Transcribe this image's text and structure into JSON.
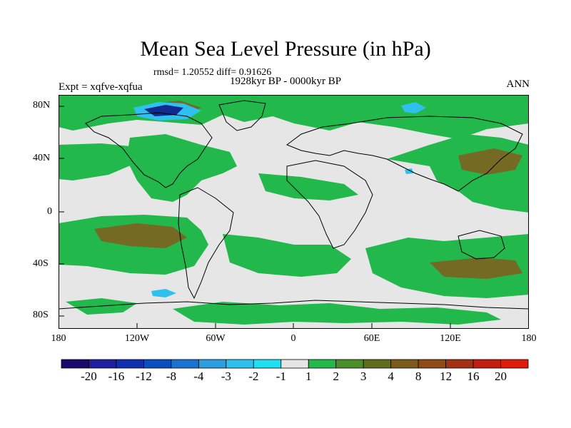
{
  "map": {
    "title": "Mean Sea Level Pressure (in hPa)",
    "stats_line": "rmsd= 1.20552 diff= 0.91626",
    "experiment": "Expt = xqfve-xqfua",
    "period": "1928kyr BP - 0000kyr BP",
    "season": "ANN",
    "projection": "cylindrical equidistant, 180W to 180E, 90S to 90N",
    "lat_labels": [
      "80N",
      "40N",
      "0",
      "40S",
      "80S"
    ],
    "lon_labels": [
      "180",
      "120W",
      "60W",
      "0",
      "60E",
      "120E",
      "180"
    ]
  },
  "colorbar": {
    "labels": [
      "-20",
      "-16",
      "-12",
      "-8",
      "-4",
      "-3",
      "-2",
      "-1",
      "1",
      "2",
      "3",
      "4",
      "8",
      "12",
      "16",
      "20"
    ],
    "colors": [
      "#1a0a6b",
      "#1f1fa0",
      "#1030b0",
      "#0a4fbf",
      "#1a73d0",
      "#2a9ee0",
      "#2fc0ee",
      "#20e0f0",
      "#e6e6e6",
      "#22b84c",
      "#4c8f2a",
      "#5e6e1e",
      "#7c5a1c",
      "#8f4a16",
      "#a43016",
      "#c41e10",
      "#e01c0c"
    ]
  },
  "colors": {
    "neutral": "#e6e6e6",
    "level_2": "#22b84c",
    "level_3": "#4c8f2a",
    "level_4": "#746a24",
    "level_neg2": "#2fc0ee",
    "level_neg12": "#102a90"
  }
}
